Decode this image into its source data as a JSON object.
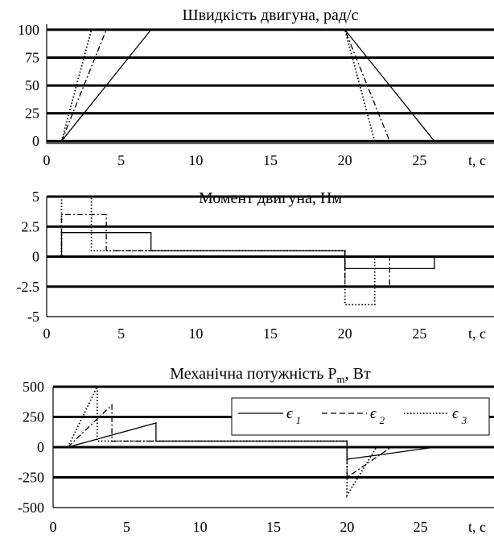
{
  "chart_data": [
    {
      "type": "line",
      "title": "Швидкість двигуна, рад/с",
      "xlabel": "t, c",
      "ylabel": "",
      "xlim": [
        0,
        30
      ],
      "ylim": [
        -2,
        105
      ],
      "xticks": [
        0,
        5,
        10,
        15,
        20,
        25
      ],
      "xtick_labels": [
        "0",
        "5",
        "10",
        "15",
        "20",
        "25"
      ],
      "yticks": [
        0,
        25,
        50,
        75,
        100
      ],
      "ytick_labels": [
        "0",
        "25",
        "50",
        "75",
        "100"
      ],
      "grid": "horizontal",
      "series": [
        {
          "style": "solid",
          "x": [
            1,
            7,
            20,
            26,
            30
          ],
          "y": [
            0,
            100,
            100,
            0,
            0
          ]
        },
        {
          "style": "dashdot",
          "x": [
            1,
            4,
            20,
            23
          ],
          "y": [
            0,
            100,
            100,
            0
          ]
        },
        {
          "style": "dotted",
          "x": [
            1,
            3,
            20,
            22
          ],
          "y": [
            0,
            100,
            100,
            0
          ]
        }
      ]
    },
    {
      "type": "line",
      "title": "Момент двигуна, Нм",
      "xlabel": "t, c",
      "ylabel": "",
      "xlim": [
        0,
        30
      ],
      "ylim": [
        -5,
        5
      ],
      "xticks": [
        0,
        5,
        10,
        15,
        20,
        25
      ],
      "xtick_labels": [
        "0",
        "5",
        "10",
        "15",
        "20",
        "25"
      ],
      "yticks": [
        5,
        2.5,
        0,
        -2.5,
        -5
      ],
      "ytick_labels": [
        "5",
        "2.5",
        "0",
        "-2.5",
        "-5"
      ],
      "grid": "horizontal",
      "series": [
        {
          "style": "solid",
          "x": [
            0,
            1,
            1,
            7,
            7,
            20,
            20,
            26,
            26,
            30
          ],
          "y": [
            0,
            0,
            2,
            2,
            0.5,
            0.5,
            -1,
            -1,
            0,
            0
          ]
        },
        {
          "style": "dashdot",
          "x": [
            0,
            1,
            1,
            4,
            4,
            20,
            20,
            23,
            23,
            30
          ],
          "y": [
            0,
            0,
            3.5,
            3.5,
            0.5,
            0.5,
            -2.5,
            -2.5,
            0,
            0
          ]
        },
        {
          "style": "dotted",
          "x": [
            0,
            1,
            1,
            3,
            3,
            20,
            20,
            22,
            22,
            30
          ],
          "y": [
            0,
            0,
            5,
            5,
            0.5,
            0.5,
            -4,
            -4,
            0,
            0
          ]
        }
      ]
    },
    {
      "type": "line",
      "title": "Механічна потужність P",
      "title_sub": "m",
      "title_suffix": ", Вт",
      "xlabel": "t, c",
      "ylabel": "",
      "xlim": [
        0,
        30
      ],
      "ylim": [
        -500,
        500
      ],
      "xticks": [
        0,
        5,
        10,
        15,
        20,
        25
      ],
      "xtick_labels": [
        "0",
        "5",
        "10",
        "15",
        "20",
        "25"
      ],
      "yticks": [
        500,
        250,
        0,
        -250,
        -500
      ],
      "ytick_labels": [
        "500",
        "250",
        "0",
        "-250",
        "-500"
      ],
      "grid": "horizontal",
      "legend": {
        "position": "top-right",
        "entries": [
          {
            "symbol": "ϵ",
            "sub": "1",
            "style": "solid"
          },
          {
            "symbol": "ϵ",
            "sub": "2",
            "style": "dashed"
          },
          {
            "symbol": "ϵ",
            "sub": "3",
            "style": "dotted"
          }
        ]
      },
      "series": [
        {
          "style": "solid",
          "x": [
            1,
            7,
            7,
            20,
            20,
            26,
            26,
            30
          ],
          "y": [
            0,
            200,
            50,
            50,
            -100,
            0,
            0,
            0
          ]
        },
        {
          "style": "dashdot",
          "x": [
            1,
            4,
            4,
            20,
            20,
            23,
            23,
            30
          ],
          "y": [
            0,
            350,
            50,
            50,
            -250,
            0,
            0,
            0
          ]
        },
        {
          "style": "dotted",
          "x": [
            1,
            3,
            3,
            20,
            20,
            22,
            22,
            30
          ],
          "y": [
            0,
            500,
            50,
            50,
            -400,
            0,
            0,
            0
          ]
        }
      ]
    }
  ]
}
